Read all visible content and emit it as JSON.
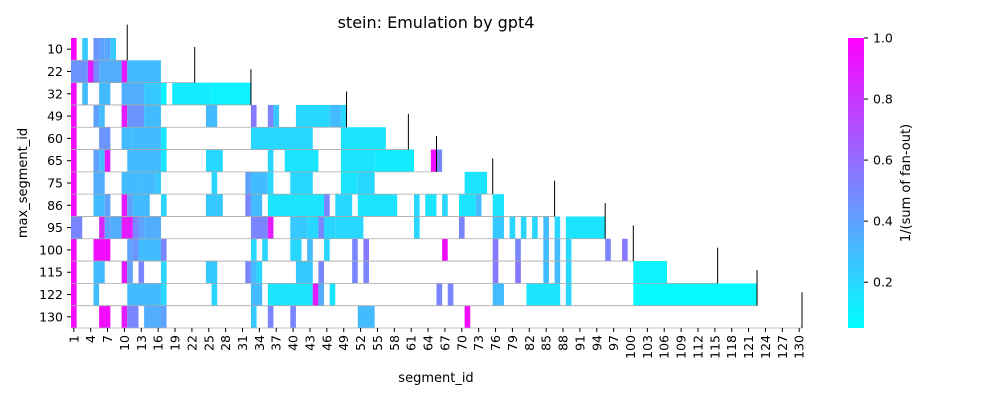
{
  "chart_data": {
    "type": "heatmap",
    "title": "stein: Emulation by gpt4",
    "xlabel": "segment_id",
    "ylabel": "max_segment_id",
    "colorbar_label": "1/(sum of fan-out)",
    "colormap": "cool",
    "vmin": 0.05,
    "vmax": 1.0,
    "colorbar_ticks": [
      "0.2",
      "0.4",
      "0.6",
      "0.8",
      "1.0"
    ],
    "colorbar_tick_values": [
      0.2,
      0.4,
      0.6,
      0.8,
      1.0
    ],
    "x_ticks": [
      "1",
      "4",
      "7",
      "10",
      "13",
      "16",
      "19",
      "22",
      "25",
      "28",
      "31",
      "34",
      "37",
      "40",
      "43",
      "46",
      "49",
      "52",
      "55",
      "58",
      "61",
      "64",
      "67",
      "70",
      "73",
      "76",
      "79",
      "82",
      "85",
      "88",
      "91",
      "94",
      "97",
      "100",
      "103",
      "106",
      "109",
      "112",
      "115",
      "118",
      "121",
      "124",
      "127",
      "130"
    ],
    "x_range": [
      1,
      130
    ],
    "rows": [
      {
        "label": "10",
        "max": 10,
        "cells": [
          [
            1,
            1,
            1.0
          ],
          [
            3,
            3,
            0.25
          ],
          [
            5,
            5,
            0.45
          ],
          [
            6,
            6,
            0.4
          ],
          [
            7,
            7,
            0.38
          ],
          [
            8,
            8,
            0.25
          ]
        ]
      },
      {
        "label": "22",
        "max": 22,
        "cells": [
          [
            1,
            3,
            0.45
          ],
          [
            4,
            4,
            0.9
          ],
          [
            5,
            5,
            0.5
          ],
          [
            6,
            9,
            0.35
          ],
          [
            10,
            10,
            0.9
          ],
          [
            11,
            16,
            0.3
          ]
        ]
      },
      {
        "label": "32",
        "max": 32,
        "cells": [
          [
            1,
            1,
            0.95
          ],
          [
            3,
            3,
            0.3
          ],
          [
            6,
            7,
            0.3
          ],
          [
            10,
            13,
            0.35
          ],
          [
            14,
            16,
            0.25
          ],
          [
            17,
            17,
            0.1
          ],
          [
            19,
            25,
            0.12
          ],
          [
            26,
            32,
            0.1
          ]
        ]
      },
      {
        "label": "49",
        "max": 49,
        "cells": [
          [
            1,
            1,
            0.95
          ],
          [
            5,
            5,
            0.4
          ],
          [
            6,
            6,
            0.3
          ],
          [
            10,
            10,
            0.9
          ],
          [
            11,
            13,
            0.45
          ],
          [
            14,
            16,
            0.3
          ],
          [
            25,
            26,
            0.3
          ],
          [
            33,
            33,
            0.55
          ],
          [
            36,
            36,
            0.5
          ],
          [
            37,
            37,
            0.25
          ],
          [
            41,
            46,
            0.2
          ],
          [
            47,
            48,
            0.3
          ],
          [
            49,
            49,
            0.2
          ]
        ]
      },
      {
        "label": "60",
        "max": 60,
        "cells": [
          [
            1,
            1,
            0.95
          ],
          [
            6,
            7,
            0.45
          ],
          [
            10,
            11,
            0.3
          ],
          [
            12,
            16,
            0.3
          ],
          [
            17,
            17,
            0.15
          ],
          [
            33,
            43,
            0.2
          ],
          [
            49,
            56,
            0.15
          ]
        ]
      },
      {
        "label": "65",
        "max": 65,
        "cells": [
          [
            1,
            1,
            0.95
          ],
          [
            5,
            5,
            0.4
          ],
          [
            6,
            6,
            0.3
          ],
          [
            7,
            7,
            0.9
          ],
          [
            11,
            16,
            0.3
          ],
          [
            17,
            17,
            0.15
          ],
          [
            25,
            27,
            0.2
          ],
          [
            36,
            36,
            0.2
          ],
          [
            39,
            44,
            0.15
          ],
          [
            49,
            54,
            0.15
          ],
          [
            55,
            61,
            0.12
          ],
          [
            65,
            65,
            0.95
          ],
          [
            66,
            66,
            0.5
          ]
        ]
      },
      {
        "label": "75",
        "max": 75,
        "cells": [
          [
            1,
            1,
            0.95
          ],
          [
            5,
            6,
            0.35
          ],
          [
            10,
            12,
            0.3
          ],
          [
            13,
            15,
            0.3
          ],
          [
            16,
            16,
            0.25
          ],
          [
            26,
            26,
            0.2
          ],
          [
            32,
            32,
            0.4
          ],
          [
            33,
            35,
            0.3
          ],
          [
            36,
            36,
            0.2
          ],
          [
            40,
            43,
            0.2
          ],
          [
            49,
            51,
            0.15
          ],
          [
            52,
            54,
            0.2
          ],
          [
            71,
            74,
            0.15
          ]
        ]
      },
      {
        "label": "86",
        "max": 86,
        "cells": [
          [
            1,
            1,
            0.95
          ],
          [
            5,
            6,
            0.3
          ],
          [
            7,
            7,
            0.4
          ],
          [
            10,
            10,
            0.9
          ],
          [
            11,
            11,
            0.4
          ],
          [
            12,
            14,
            0.3
          ],
          [
            17,
            17,
            0.2
          ],
          [
            25,
            27,
            0.25
          ],
          [
            32,
            32,
            0.5
          ],
          [
            33,
            34,
            0.3
          ],
          [
            36,
            45,
            0.15
          ],
          [
            46,
            46,
            0.5
          ],
          [
            48,
            50,
            0.2
          ],
          [
            52,
            58,
            0.15
          ],
          [
            62,
            62,
            0.2
          ],
          [
            64,
            65,
            0.15
          ],
          [
            67,
            67,
            0.2
          ],
          [
            70,
            72,
            0.15
          ],
          [
            73,
            73,
            0.3
          ],
          [
            76,
            77,
            0.15
          ]
        ]
      },
      {
        "label": "95",
        "max": 95,
        "cells": [
          [
            1,
            2,
            0.5
          ],
          [
            6,
            6,
            0.85
          ],
          [
            7,
            7,
            0.4
          ],
          [
            8,
            9,
            0.35
          ],
          [
            10,
            11,
            0.9
          ],
          [
            12,
            12,
            0.5
          ],
          [
            13,
            13,
            0.4
          ],
          [
            14,
            16,
            0.35
          ],
          [
            33,
            35,
            0.5
          ],
          [
            36,
            36,
            0.9
          ],
          [
            40,
            42,
            0.25
          ],
          [
            43,
            44,
            0.2
          ],
          [
            45,
            45,
            0.5
          ],
          [
            46,
            47,
            0.2
          ],
          [
            48,
            52,
            0.2
          ],
          [
            62,
            62,
            0.2
          ],
          [
            70,
            70,
            0.5
          ],
          [
            76,
            77,
            0.25
          ],
          [
            79,
            79,
            0.2
          ],
          [
            81,
            81,
            0.2
          ],
          [
            83,
            83,
            0.2
          ],
          [
            85,
            85,
            0.3
          ],
          [
            87,
            87,
            0.2
          ],
          [
            89,
            95,
            0.15
          ]
        ]
      },
      {
        "label": "100",
        "max": 100,
        "cells": [
          [
            1,
            1,
            0.95
          ],
          [
            5,
            7,
            0.95
          ],
          [
            11,
            11,
            0.4
          ],
          [
            12,
            12,
            0.45
          ],
          [
            13,
            16,
            0.3
          ],
          [
            17,
            17,
            0.5
          ],
          [
            33,
            33,
            0.2
          ],
          [
            35,
            35,
            0.2
          ],
          [
            40,
            41,
            0.2
          ],
          [
            43,
            43,
            0.3
          ],
          [
            46,
            46,
            0.2
          ],
          [
            51,
            51,
            0.5
          ],
          [
            53,
            53,
            0.55
          ],
          [
            67,
            67,
            0.95
          ],
          [
            76,
            76,
            0.55
          ],
          [
            80,
            80,
            0.5
          ],
          [
            85,
            85,
            0.3
          ],
          [
            87,
            87,
            0.3
          ],
          [
            89,
            89,
            0.2
          ],
          [
            96,
            96,
            0.5
          ],
          [
            99,
            99,
            0.55
          ]
        ]
      },
      {
        "label": "115",
        "max": 115,
        "cells": [
          [
            1,
            1,
            0.95
          ],
          [
            5,
            6,
            0.3
          ],
          [
            10,
            10,
            0.9
          ],
          [
            11,
            11,
            0.4
          ],
          [
            13,
            13,
            0.5
          ],
          [
            17,
            17,
            0.2
          ],
          [
            25,
            26,
            0.25
          ],
          [
            32,
            32,
            0.5
          ],
          [
            33,
            33,
            0.3
          ],
          [
            34,
            34,
            0.2
          ],
          [
            41,
            43,
            0.25
          ],
          [
            45,
            45,
            0.5
          ],
          [
            51,
            51,
            0.5
          ],
          [
            53,
            53,
            0.5
          ],
          [
            76,
            76,
            0.55
          ],
          [
            80,
            80,
            0.55
          ],
          [
            85,
            85,
            0.3
          ],
          [
            87,
            87,
            0.3
          ],
          [
            89,
            89,
            0.2
          ],
          [
            101,
            106,
            0.1
          ]
        ]
      },
      {
        "label": "122",
        "max": 122,
        "cells": [
          [
            1,
            1,
            0.95
          ],
          [
            5,
            5,
            0.3
          ],
          [
            11,
            16,
            0.3
          ],
          [
            17,
            17,
            0.2
          ],
          [
            26,
            26,
            0.2
          ],
          [
            33,
            34,
            0.3
          ],
          [
            36,
            43,
            0.15
          ],
          [
            44,
            44,
            0.9
          ],
          [
            45,
            45,
            0.35
          ],
          [
            47,
            47,
            0.15
          ],
          [
            66,
            66,
            0.5
          ],
          [
            68,
            68,
            0.5
          ],
          [
            76,
            77,
            0.3
          ],
          [
            82,
            87,
            0.15
          ],
          [
            89,
            89,
            0.2
          ],
          [
            101,
            122,
            0.07
          ]
        ]
      },
      {
        "label": "130",
        "max": 130,
        "cells": [
          [
            1,
            1,
            0.95
          ],
          [
            6,
            7,
            0.95
          ],
          [
            10,
            10,
            0.9
          ],
          [
            11,
            12,
            0.5
          ],
          [
            14,
            16,
            0.35
          ],
          [
            17,
            17,
            0.4
          ],
          [
            33,
            33,
            0.25
          ],
          [
            36,
            36,
            0.5
          ],
          [
            40,
            40,
            0.5
          ],
          [
            52,
            54,
            0.3
          ],
          [
            71,
            71,
            0.95
          ]
        ]
      }
    ]
  }
}
